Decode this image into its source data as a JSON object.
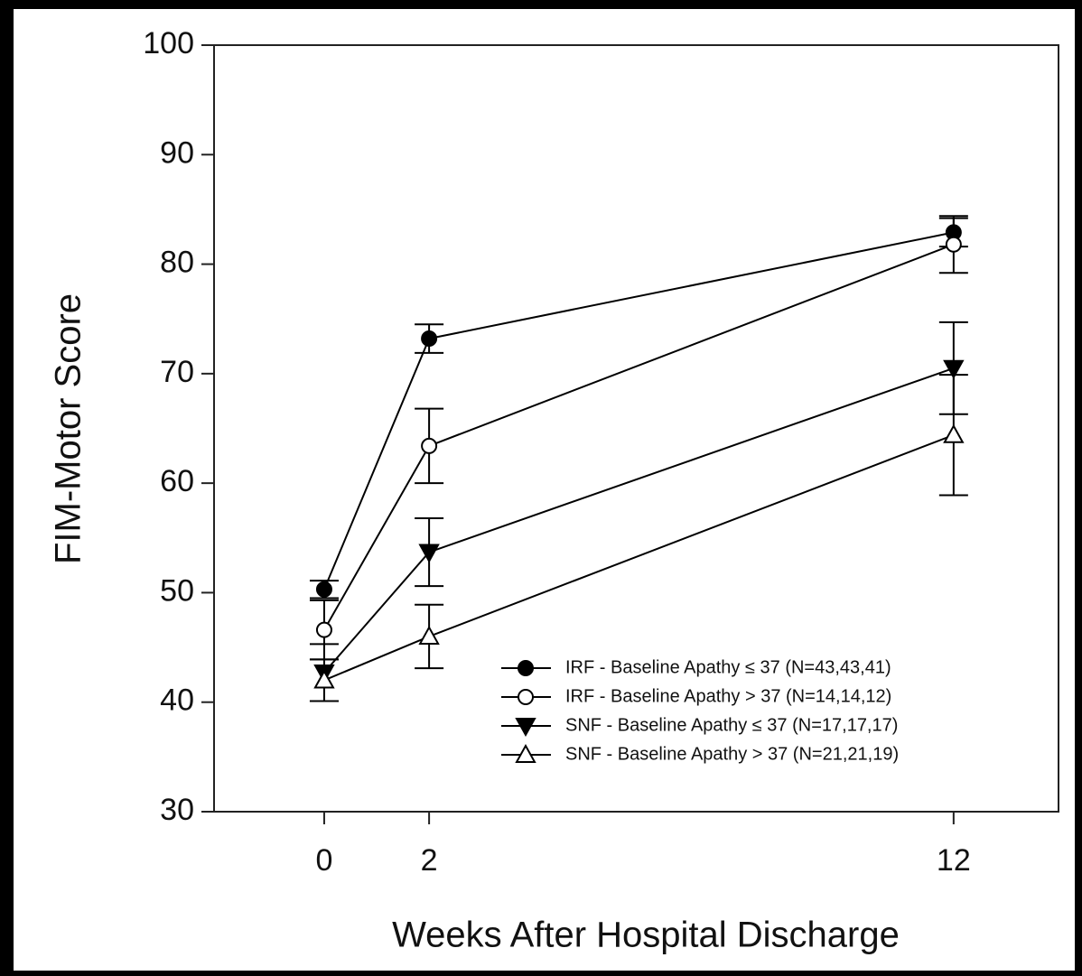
{
  "chart_data": {
    "type": "line",
    "xlabel": "Weeks After Hospital Discharge",
    "ylabel": "FIM-Motor Score",
    "x": [
      0,
      2,
      12
    ],
    "xlim": [
      -2.1,
      14
    ],
    "xticks": [
      0,
      2,
      12
    ],
    "ylim": [
      30,
      100
    ],
    "yticks": [
      30,
      40,
      50,
      60,
      70,
      80,
      90,
      100
    ],
    "legend": "lower right",
    "series": [
      {
        "name": "IRF - Baseline Apathy ≤ 37  (N=43,43,41)",
        "color": "#000000",
        "marker": "circle-filled",
        "values": [
          50.3,
          73.2,
          82.9
        ],
        "errors": [
          0.8,
          1.3,
          1.3
        ]
      },
      {
        "name": "IRF - Baseline Apathy  > 37 (N=14,14,12)",
        "color": "#000000",
        "marker": "circle-open",
        "values": [
          46.6,
          63.4,
          81.8
        ],
        "errors": [
          2.7,
          3.4,
          2.6
        ]
      },
      {
        "name": "SNF - Baseline Apathy ≤ 37 (N=17,17,17)",
        "color": "#000000",
        "marker": "triangle-down-filled",
        "values": [
          42.7,
          53.7,
          70.5
        ],
        "errors": [
          2.6,
          3.1,
          4.2
        ]
      },
      {
        "name": "SNF - Baseline Apathy  > 37 (N=21,21,19)",
        "color": "#000000",
        "marker": "triangle-up-open",
        "values": [
          42.0,
          46.0,
          64.4
        ],
        "errors": [
          1.9,
          2.9,
          5.5
        ]
      }
    ]
  }
}
